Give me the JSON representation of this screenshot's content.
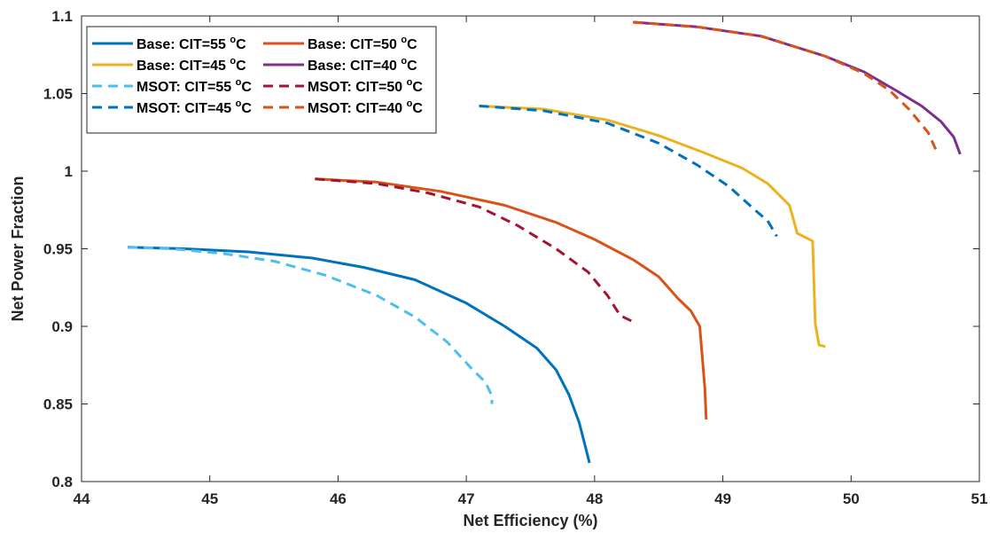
{
  "chart_data": {
    "type": "line",
    "title": "",
    "xlabel": "Net Efficiency (%)",
    "ylabel": "Net Power Fraction",
    "xlim": [
      44,
      51
    ],
    "ylim": [
      0.8,
      1.1
    ],
    "xticks": [
      44,
      45,
      46,
      47,
      48,
      49,
      50,
      51
    ],
    "yticks": [
      0.8,
      0.85,
      0.9,
      0.95,
      1,
      1.05,
      1.1
    ],
    "xtick_labels": [
      "44",
      "45",
      "46",
      "47",
      "48",
      "49",
      "50",
      "51"
    ],
    "ytick_labels": [
      "0.8",
      "0.85",
      "0.9",
      "0.95",
      "1",
      "1.05",
      "1.1"
    ],
    "grid": false,
    "legend_position": "top-left",
    "series": [
      {
        "name": "Base: CIT=55 °C",
        "legend_main": "Base: CIT=55 ",
        "legend_sup": "o",
        "legend_tail": "C",
        "color": "#0072BD",
        "dash": "solid",
        "points": [
          [
            44.36,
            0.951
          ],
          [
            44.8,
            0.95
          ],
          [
            45.3,
            0.948
          ],
          [
            45.8,
            0.944
          ],
          [
            46.2,
            0.938
          ],
          [
            46.6,
            0.93
          ],
          [
            47.0,
            0.915
          ],
          [
            47.3,
            0.9
          ],
          [
            47.55,
            0.886
          ],
          [
            47.7,
            0.872
          ],
          [
            47.8,
            0.856
          ],
          [
            47.88,
            0.838
          ],
          [
            47.93,
            0.822
          ],
          [
            47.96,
            0.812
          ]
        ]
      },
      {
        "name": "Base: CIT=50 °C",
        "legend_main": "Base: CIT=50 ",
        "legend_sup": "o",
        "legend_tail": "C",
        "color": "#D95319",
        "dash": "solid",
        "points": [
          [
            45.82,
            0.995
          ],
          [
            46.3,
            0.993
          ],
          [
            46.8,
            0.987
          ],
          [
            47.3,
            0.978
          ],
          [
            47.7,
            0.967
          ],
          [
            48.0,
            0.956
          ],
          [
            48.3,
            0.943
          ],
          [
            48.5,
            0.932
          ],
          [
            48.65,
            0.918
          ],
          [
            48.75,
            0.91
          ],
          [
            48.82,
            0.9
          ],
          [
            48.84,
            0.88
          ],
          [
            48.86,
            0.86
          ],
          [
            48.87,
            0.84
          ]
        ]
      },
      {
        "name": "Base: CIT=45 °C",
        "legend_main": "Base: CIT=45 ",
        "legend_sup": "o",
        "legend_tail": "C",
        "color": "#EDB120",
        "dash": "solid",
        "points": [
          [
            47.1,
            1.042
          ],
          [
            47.6,
            1.04
          ],
          [
            48.1,
            1.033
          ],
          [
            48.5,
            1.023
          ],
          [
            48.85,
            1.012
          ],
          [
            49.15,
            1.002
          ],
          [
            49.35,
            0.992
          ],
          [
            49.52,
            0.978
          ],
          [
            49.58,
            0.96
          ],
          [
            49.7,
            0.955
          ],
          [
            49.71,
            0.93
          ],
          [
            49.72,
            0.902
          ],
          [
            49.75,
            0.888
          ],
          [
            49.8,
            0.887
          ]
        ]
      },
      {
        "name": "Base: CIT=40 °C",
        "legend_main": "Base: CIT=40 ",
        "legend_sup": "o",
        "legend_tail": "C",
        "color": "#7E2F8E",
        "dash": "solid",
        "points": [
          [
            48.3,
            1.096
          ],
          [
            48.8,
            1.093
          ],
          [
            49.3,
            1.087
          ],
          [
            49.8,
            1.074
          ],
          [
            50.1,
            1.064
          ],
          [
            50.35,
            1.052
          ],
          [
            50.55,
            1.042
          ],
          [
            50.7,
            1.032
          ],
          [
            50.8,
            1.022
          ],
          [
            50.85,
            1.011
          ]
        ]
      },
      {
        "name": "MSOT: CIT=55 °C",
        "legend_main": "MSOT: CIT=55 ",
        "legend_sup": "o",
        "legend_tail": "C",
        "color": "#4DBEEE",
        "dash": "dashed",
        "points": [
          [
            44.36,
            0.951
          ],
          [
            44.7,
            0.95
          ],
          [
            45.1,
            0.947
          ],
          [
            45.5,
            0.942
          ],
          [
            45.9,
            0.933
          ],
          [
            46.3,
            0.92
          ],
          [
            46.6,
            0.906
          ],
          [
            46.85,
            0.89
          ],
          [
            47.05,
            0.872
          ],
          [
            47.15,
            0.864
          ],
          [
            47.2,
            0.855
          ],
          [
            47.2,
            0.85
          ]
        ]
      },
      {
        "name": "MSOT: CIT=50 °C",
        "legend_main": "MSOT: CIT=50 ",
        "legend_sup": "o",
        "legend_tail": "C",
        "color": "#A2142F",
        "dash": "dashed",
        "points": [
          [
            45.82,
            0.995
          ],
          [
            46.3,
            0.992
          ],
          [
            46.7,
            0.986
          ],
          [
            47.1,
            0.977
          ],
          [
            47.4,
            0.965
          ],
          [
            47.7,
            0.95
          ],
          [
            47.95,
            0.935
          ],
          [
            48.1,
            0.92
          ],
          [
            48.2,
            0.907
          ],
          [
            48.3,
            0.903
          ]
        ]
      },
      {
        "name": "MSOT: CIT=45 °C",
        "legend_main": "MSOT: CIT=45 ",
        "legend_sup": "o",
        "legend_tail": "C",
        "color": "#0072BD",
        "dash": "dashed",
        "points": [
          [
            47.1,
            1.042
          ],
          [
            47.6,
            1.039
          ],
          [
            48.1,
            1.031
          ],
          [
            48.5,
            1.018
          ],
          [
            48.8,
            1.004
          ],
          [
            49.05,
            0.99
          ],
          [
            49.25,
            0.975
          ],
          [
            49.35,
            0.968
          ],
          [
            49.42,
            0.958
          ]
        ]
      },
      {
        "name": "MSOT: CIT=40 °C",
        "legend_main": "MSOT: CIT=40 ",
        "legend_sup": "o",
        "legend_tail": "C",
        "color": "#D95319",
        "dash": "dashed",
        "points": [
          [
            48.3,
            1.096
          ],
          [
            48.8,
            1.093
          ],
          [
            49.3,
            1.087
          ],
          [
            49.8,
            1.074
          ],
          [
            50.1,
            1.063
          ],
          [
            50.3,
            1.052
          ],
          [
            50.45,
            1.04
          ],
          [
            50.6,
            1.025
          ],
          [
            50.66,
            1.014
          ]
        ]
      }
    ]
  }
}
